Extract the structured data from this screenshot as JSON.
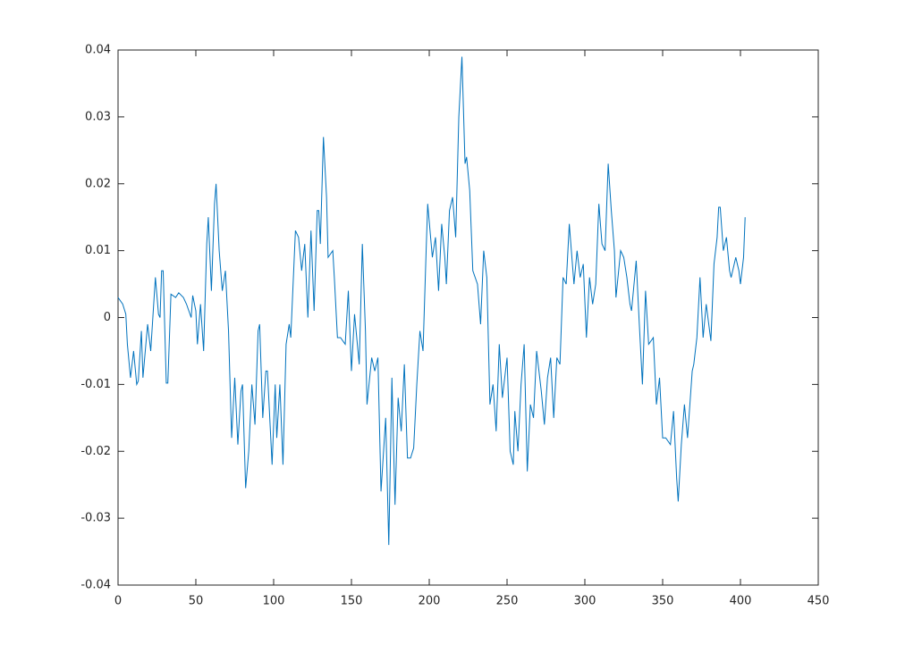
{
  "chart_data": {
    "type": "line",
    "x": [
      0,
      3,
      5,
      6,
      8,
      10,
      12,
      13,
      15,
      16,
      19,
      21,
      24,
      26,
      27,
      28,
      29,
      31,
      32,
      34,
      37,
      39,
      42,
      44,
      47,
      48,
      50,
      51,
      53,
      55,
      57,
      58,
      60,
      62,
      63,
      65,
      67,
      69,
      71,
      73,
      75,
      77,
      79,
      80,
      82,
      84,
      86,
      88,
      90,
      91,
      93,
      95,
      96,
      99,
      101,
      102,
      104,
      106,
      108,
      110,
      111,
      114,
      116,
      118,
      120,
      122,
      124,
      126,
      128,
      129,
      130,
      132,
      134,
      135,
      138,
      139,
      141,
      143,
      146,
      148,
      150,
      152,
      155,
      157,
      159,
      160,
      163,
      165,
      167,
      169,
      172,
      174,
      176,
      178,
      180,
      182,
      184,
      186,
      188,
      190,
      192,
      194,
      196,
      198,
      199,
      202,
      204,
      206,
      208,
      210,
      211,
      213,
      215,
      217,
      219,
      221,
      223,
      224,
      226,
      228,
      231,
      233,
      235,
      237,
      239,
      241,
      243,
      245,
      247,
      250,
      252,
      254,
      255,
      257,
      259,
      261,
      263,
      265,
      267,
      269,
      272,
      274,
      276,
      278,
      280,
      282,
      284,
      286,
      288,
      290,
      293,
      295,
      297,
      299,
      301,
      303,
      305,
      307,
      309,
      311,
      313,
      315,
      317,
      319,
      320,
      323,
      325,
      327,
      329,
      330,
      333,
      335,
      337,
      339,
      341,
      344,
      346,
      348,
      350,
      352,
      355,
      357,
      359,
      360,
      362,
      364,
      366,
      369,
      370,
      372,
      374,
      376,
      378,
      381,
      383,
      385,
      386,
      387,
      389,
      391,
      393,
      394,
      397,
      399,
      400,
      402,
      403
    ],
    "series": [
      {
        "color": "#0072bd",
        "values": [
          0.003,
          0.002,
          0.0005,
          -0.004,
          -0.009,
          -0.005,
          -0.01,
          -0.0095,
          -0.002,
          -0.009,
          -0.001,
          -0.005,
          0.006,
          0.0005,
          0.0,
          0.007,
          0.007,
          -0.0098,
          -0.0098,
          0.0035,
          0.003,
          0.0037,
          0.003,
          0.002,
          0.0,
          0.0033,
          0.001,
          -0.004,
          0.002,
          -0.005,
          0.011,
          0.015,
          0.004,
          0.017,
          0.02,
          0.01,
          0.004,
          0.007,
          -0.002,
          -0.018,
          -0.009,
          -0.019,
          -0.011,
          -0.01,
          -0.0255,
          -0.02,
          -0.01,
          -0.016,
          -0.002,
          -0.001,
          -0.015,
          -0.008,
          -0.008,
          -0.022,
          -0.01,
          -0.018,
          -0.01,
          -0.022,
          -0.004,
          -0.001,
          -0.003,
          0.013,
          0.012,
          0.007,
          0.011,
          0.0,
          0.013,
          0.001,
          0.016,
          0.016,
          0.011,
          0.027,
          0.018,
          0.009,
          0.01,
          0.006,
          -0.003,
          -0.003,
          -0.004,
          0.004,
          -0.008,
          0.0005,
          -0.007,
          0.011,
          -0.002,
          -0.013,
          -0.006,
          -0.008,
          -0.006,
          -0.026,
          -0.015,
          -0.034,
          -0.009,
          -0.028,
          -0.012,
          -0.017,
          -0.007,
          -0.021,
          -0.021,
          -0.0195,
          -0.01,
          -0.002,
          -0.005,
          0.01,
          0.017,
          0.009,
          0.012,
          0.004,
          0.014,
          0.009,
          0.005,
          0.016,
          0.018,
          0.012,
          0.03,
          0.039,
          0.023,
          0.024,
          0.019,
          0.007,
          0.005,
          -0.001,
          0.01,
          0.006,
          -0.013,
          -0.01,
          -0.017,
          -0.004,
          -0.012,
          -0.006,
          -0.02,
          -0.022,
          -0.014,
          -0.02,
          -0.01,
          -0.004,
          -0.023,
          -0.013,
          -0.015,
          -0.005,
          -0.011,
          -0.016,
          -0.009,
          -0.006,
          -0.015,
          -0.006,
          -0.007,
          0.006,
          0.005,
          0.014,
          0.005,
          0.01,
          0.006,
          0.008,
          -0.003,
          0.006,
          0.002,
          0.005,
          0.017,
          0.011,
          0.01,
          0.023,
          0.016,
          0.01,
          0.003,
          0.01,
          0.009,
          0.006,
          0.002,
          0.001,
          0.0085,
          -0.001,
          -0.01,
          0.004,
          -0.004,
          -0.003,
          -0.013,
          -0.009,
          -0.018,
          -0.018,
          -0.019,
          -0.014,
          -0.024,
          -0.0275,
          -0.019,
          -0.013,
          -0.018,
          -0.008,
          -0.007,
          -0.003,
          0.006,
          -0.003,
          0.002,
          -0.0035,
          0.008,
          0.012,
          0.0165,
          0.0165,
          0.01,
          0.012,
          0.007,
          0.006,
          0.009,
          0.007,
          0.005,
          0.009,
          0.015
        ]
      }
    ],
    "xlim": [
      0,
      450
    ],
    "ylim": [
      -0.04,
      0.04
    ],
    "xticks": [
      0,
      50,
      100,
      150,
      200,
      250,
      300,
      350,
      400,
      450
    ],
    "yticks": [
      -0.04,
      -0.03,
      -0.02,
      -0.01,
      0,
      0.01,
      0.02,
      0.03,
      0.04
    ]
  }
}
